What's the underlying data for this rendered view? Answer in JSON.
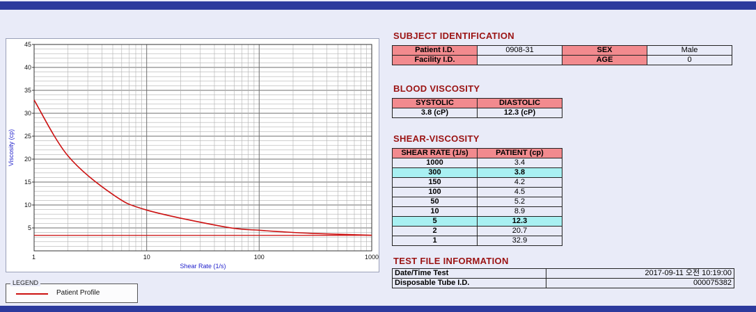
{
  "chart": {
    "xlabel": "Shear Rate (1/s)",
    "ylabel": "Viscosity (cp)",
    "line_color": "#cc1111",
    "legend_title": "LEGEND",
    "legend_series": "Patient Profile"
  },
  "chart_data": {
    "type": "line",
    "xscale": "log",
    "x": [
      1,
      2,
      5,
      10,
      50,
      100,
      150,
      300,
      1000
    ],
    "series": [
      {
        "name": "Patient Profile",
        "values": [
          32.9,
          20.7,
          12.3,
          8.9,
          5.2,
          4.5,
          4.2,
          3.8,
          3.4
        ]
      }
    ],
    "hline": 3.4,
    "xlim": [
      1,
      1000
    ],
    "ylim": [
      0,
      45
    ],
    "yticks": [
      5,
      10,
      15,
      20,
      25,
      30,
      35,
      40,
      45
    ],
    "xticks": [
      1,
      10,
      100,
      1000
    ],
    "grid": true,
    "legend_position": "below-left"
  },
  "sections": {
    "subject": {
      "title": "SUBJECT IDENTIFICATION",
      "rows": [
        {
          "label1": "Patient I.D.",
          "value1": "0908-31",
          "label2": "SEX",
          "value2": "Male"
        },
        {
          "label1": "Facility I.D.",
          "value1": "",
          "label2": "AGE",
          "value2": "0"
        }
      ]
    },
    "blood": {
      "title": "BLOOD VISCOSITY",
      "headers": [
        "SYSTOLIC",
        "DIASTOLIC"
      ],
      "values": [
        "3.8 (cP)",
        "12.3 (cP)"
      ]
    },
    "shear": {
      "title": "SHEAR-VISCOSITY",
      "headers": [
        "SHEAR RATE (1/s)",
        "PATIENT (cp)"
      ],
      "rows": [
        {
          "rate": "1000",
          "value": "3.4",
          "highlight": false
        },
        {
          "rate": "300",
          "value": "3.8",
          "highlight": true
        },
        {
          "rate": "150",
          "value": "4.2",
          "highlight": false
        },
        {
          "rate": "100",
          "value": "4.5",
          "highlight": false
        },
        {
          "rate": "50",
          "value": "5.2",
          "highlight": false
        },
        {
          "rate": "10",
          "value": "8.9",
          "highlight": false
        },
        {
          "rate": "5",
          "value": "12.3",
          "highlight": true
        },
        {
          "rate": "2",
          "value": "20.7",
          "highlight": false
        },
        {
          "rate": "1",
          "value": "32.9",
          "highlight": false
        }
      ]
    },
    "testfile": {
      "title": "TEST FILE INFORMATION",
      "rows": [
        {
          "label": "Date/Time Test",
          "value": "2017-09-11  오전 10:19:00"
        },
        {
          "label": "Disposable Tube I.D.",
          "value": "000075382"
        }
      ]
    }
  }
}
